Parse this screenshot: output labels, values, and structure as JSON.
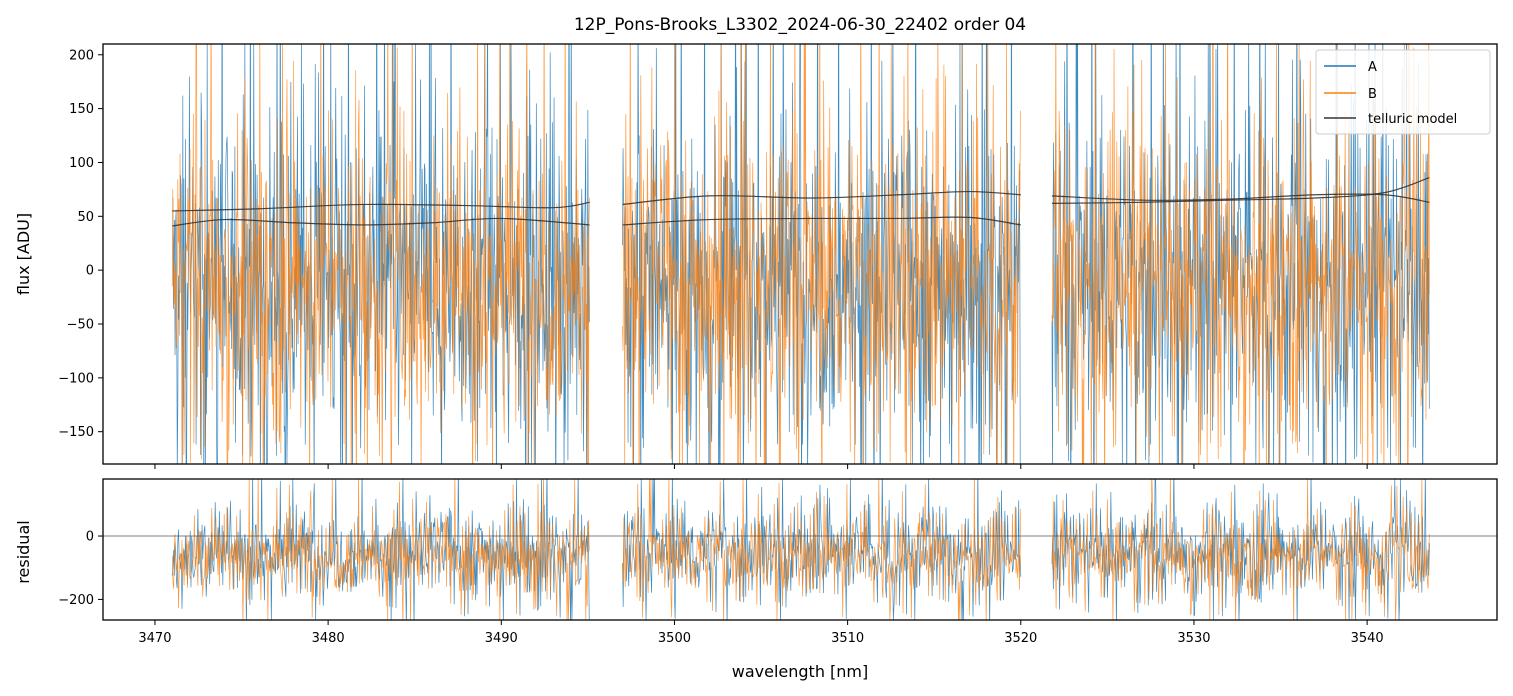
{
  "chart_data": [
    {
      "type": "line",
      "title": "12P_Pons-Brooks_L3302_2024-06-30_22402  order 04",
      "xlabel": "",
      "ylabel": "flux [ADU]",
      "xlim": [
        3467,
        3547.5
      ],
      "ylim": [
        -180,
        210
      ],
      "yticks": [
        -150,
        -100,
        -50,
        0,
        50,
        100,
        150,
        200
      ],
      "yticklabels": [
        "−150",
        "−100",
        "−50",
        "0",
        "50",
        "100",
        "150",
        "200"
      ],
      "legend": {
        "placement": "top-right",
        "entries": [
          "A",
          "B",
          "telluric model"
        ]
      },
      "segments": [
        [
          3471.0,
          3495.1
        ],
        [
          3497.0,
          3520.0
        ],
        [
          3521.8,
          3543.6
        ]
      ],
      "series": [
        {
          "name": "A",
          "color": "#1f77b4",
          "level": -10,
          "spread": 75,
          "upper_tail": 260
        },
        {
          "name": "B",
          "color": "#ff7f0e",
          "level": -10,
          "spread": 70,
          "upper_tail": 200
        },
        {
          "name": "telluric model",
          "color": "#333333",
          "curves": [
            {
              "x": [
                3471.0,
                3476.0,
                3482.0,
                3488.0,
                3493.0,
                3495.1
              ],
              "y": [
                55,
                57,
                61,
                60,
                58,
                63
              ]
            },
            {
              "x": [
                3471.0,
                3474.0,
                3478.0,
                3482.0,
                3486.0,
                3490.0,
                3495.1
              ],
              "y": [
                41,
                47,
                44,
                42,
                44,
                48,
                42
              ]
            },
            {
              "x": [
                3497.0,
                3502.0,
                3508.0,
                3513.0,
                3517.0,
                3520.0
              ],
              "y": [
                61,
                69,
                67,
                70,
                73,
                70
              ]
            },
            {
              "x": [
                3497.0,
                3502.0,
                3508.0,
                3513.0,
                3517.0,
                3520.0
              ],
              "y": [
                42,
                47,
                48,
                48,
                49,
                42
              ]
            },
            {
              "x": [
                3521.8,
                3527.0,
                3532.0,
                3537.0,
                3541.0,
                3543.6
              ],
              "y": [
                62,
                63,
                65,
                67,
                72,
                86
              ]
            },
            {
              "x": [
                3521.8,
                3527.0,
                3532.0,
                3537.0,
                3541.0,
                3543.6
              ],
              "y": [
                69,
                65,
                66,
                70,
                70,
                63
              ]
            }
          ]
        }
      ]
    },
    {
      "type": "line",
      "title": "",
      "xlabel": "wavelength [nm]",
      "ylabel": "residual",
      "xlim": [
        3467,
        3547.5
      ],
      "ylim": [
        -265,
        180
      ],
      "xticks": [
        3470,
        3480,
        3490,
        3500,
        3510,
        3520,
        3530,
        3540
      ],
      "xticklabels": [
        "3470",
        "3480",
        "3490",
        "3500",
        "3510",
        "3520",
        "3530",
        "3540"
      ],
      "yticks": [
        -200,
        0
      ],
      "yticklabels": [
        "−200",
        "0"
      ],
      "reference_line": 0,
      "segments": [
        [
          3471.0,
          3495.1
        ],
        [
          3497.0,
          3520.0
        ],
        [
          3521.8,
          3543.6
        ]
      ],
      "series": [
        {
          "name": "A",
          "color": "#1f77b4",
          "level": -50,
          "spread": 70
        },
        {
          "name": "B",
          "color": "#ff7f0e",
          "level": -60,
          "spread": 65
        }
      ]
    }
  ]
}
